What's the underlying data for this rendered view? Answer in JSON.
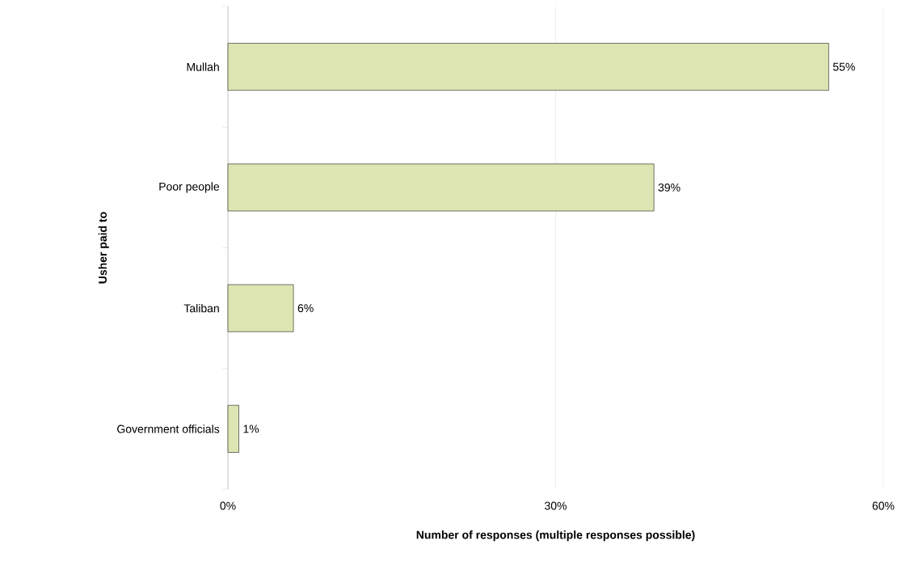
{
  "chart_data": {
    "type": "bar",
    "orientation": "horizontal",
    "xlabel": "Number of responses (multiple responses possible)",
    "ylabel": "Usher paid to",
    "categories": [
      "Mullah",
      "Poor people",
      "Taliban",
      "Government officials"
    ],
    "values": [
      55,
      39,
      6,
      1
    ],
    "color": "#dde6b3",
    "value_labels": [
      "55%",
      "39%",
      "6%",
      "1%"
    ],
    "xlim": [
      0,
      60
    ],
    "xticks": [
      {
        "value": 0,
        "label": "0%"
      },
      {
        "value": 30,
        "label": "30%"
      },
      {
        "value": 60,
        "label": "60%"
      }
    ],
    "grid": "x"
  }
}
